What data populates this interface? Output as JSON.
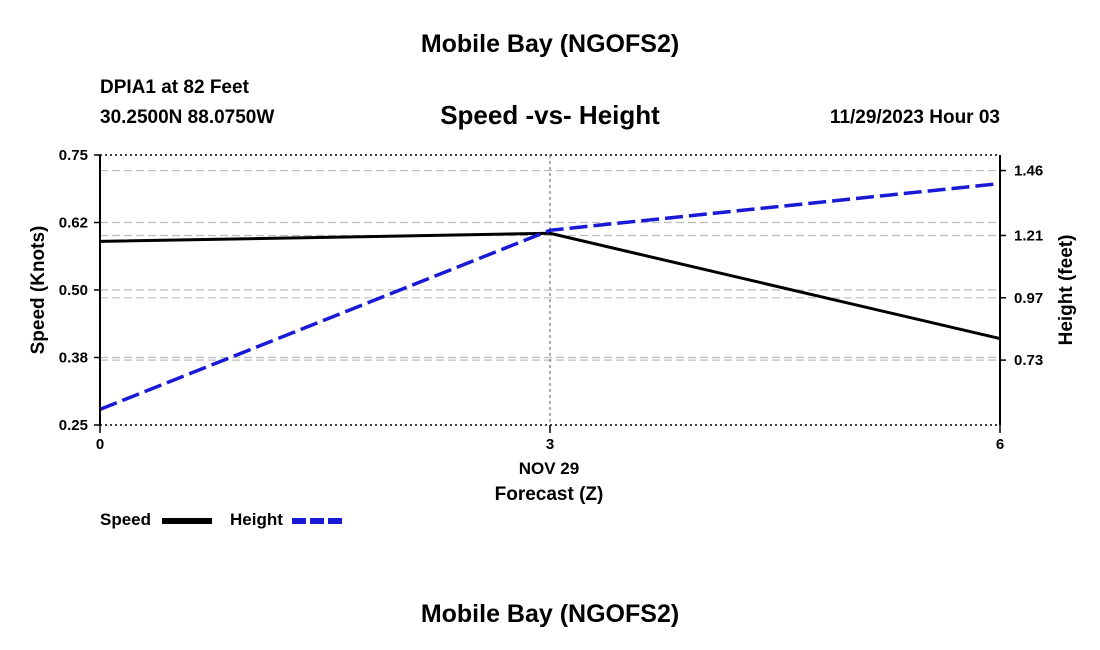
{
  "page": {
    "title": "Mobile Bay (NGOFS2)",
    "footer_title": "Mobile Bay (NGOFS2)",
    "station": "DPIA1 at 82 Feet",
    "coordinates": "30.2500N  88.0750W",
    "datetime": "11/29/2023 Hour 03"
  },
  "chart_data": {
    "type": "line",
    "title": "Speed -vs- Height",
    "xlabel": "Forecast (Z)",
    "xdate_label": "NOV 29",
    "ylabel_left": "Speed (Knots)",
    "ylabel_right": "Height (feet)",
    "xlim": [
      0,
      6
    ],
    "x_ticks": [
      "0",
      "3",
      "6"
    ],
    "x_tick_values": [
      0,
      3,
      6
    ],
    "ylim_left": [
      0.25,
      0.75
    ],
    "y_ticks_left": [
      "0.25",
      "0.38",
      "0.50",
      "0.62",
      "0.75"
    ],
    "y_tick_values_left": [
      0.25,
      0.375,
      0.5,
      0.625,
      0.75
    ],
    "ylim_right": [
      0.48,
      1.52
    ],
    "y_ticks_right": [
      "0.73",
      "0.97",
      "1.21",
      "1.46"
    ],
    "y_tick_values_right": [
      0.73,
      0.97,
      1.21,
      1.46
    ],
    "grid": true,
    "legend_position": "bottom-left",
    "series": [
      {
        "name": "Speed",
        "axis": "left",
        "style": "solid",
        "color": "#000000",
        "x": [
          0,
          3,
          6
        ],
        "values": [
          0.59,
          0.605,
          0.41
        ]
      },
      {
        "name": "Height",
        "axis": "right",
        "style": "dashed",
        "color": "#1a1ad6",
        "x": [
          0,
          3,
          6
        ],
        "values": [
          0.54,
          1.23,
          1.41
        ]
      }
    ]
  }
}
